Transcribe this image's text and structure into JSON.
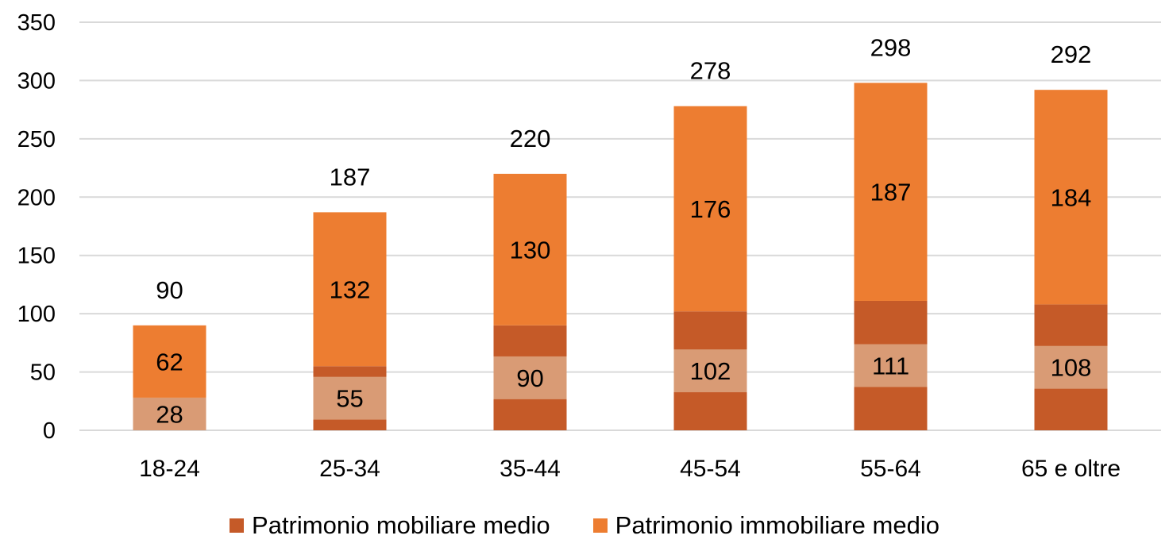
{
  "colors": {
    "mobiliare": "#c55a28",
    "mobiliare_light": "#d99b75",
    "immobiliare": "#ed7d31",
    "grid": "#d9d9d9",
    "text": "#000000"
  },
  "legend": {
    "mobiliare": "Patrimonio mobiliare medio",
    "immobiliare": "Patrimonio immobiliare medio"
  },
  "chart_data": {
    "type": "bar",
    "stacked": true,
    "categories": [
      "18-24",
      "25-34",
      "35-44",
      "45-54",
      "55-64",
      "65 e oltre"
    ],
    "series": [
      {
        "name": "Patrimonio mobiliare medio",
        "values": [
          28,
          55,
          90,
          102,
          111,
          108
        ]
      },
      {
        "name": "Patrimonio immobiliare medio",
        "values": [
          62,
          132,
          130,
          176,
          187,
          184
        ]
      }
    ],
    "totals": [
      90,
      187,
      220,
      278,
      298,
      292
    ],
    "ylim": [
      0,
      350
    ],
    "yticks": [
      0,
      50,
      100,
      150,
      200,
      250,
      300,
      350
    ],
    "grid": true,
    "legend_position": "bottom"
  }
}
